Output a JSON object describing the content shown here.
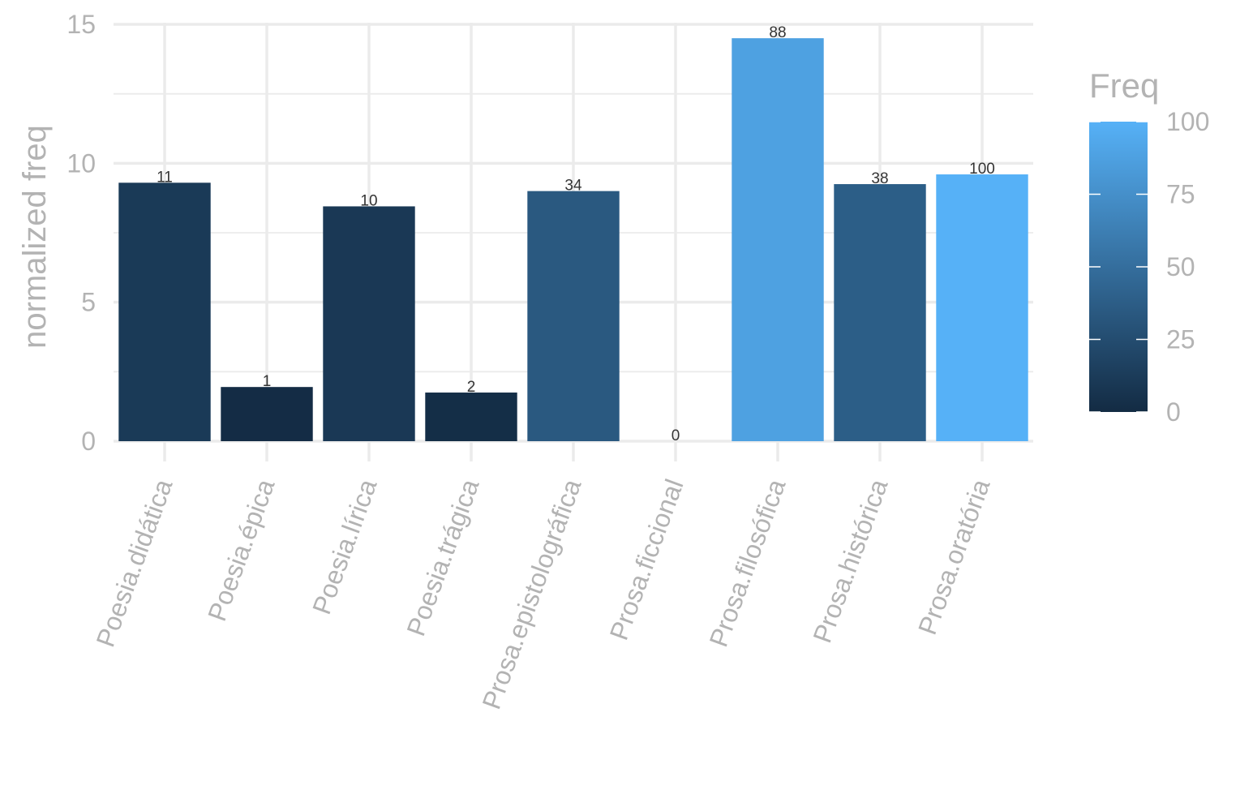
{
  "chart_data": {
    "type": "bar",
    "categories": [
      "Poesia.didática",
      "Poesia.épica",
      "Poesia.lírica",
      "Poesia.trágica",
      "Prosa.epistolográfica",
      "Prosa.ficcional",
      "Prosa.filosófica",
      "Prosa.histórica",
      "Prosa.oratória"
    ],
    "values": [
      9.3,
      1.95,
      8.45,
      1.75,
      9.0,
      0,
      14.5,
      9.25,
      9.6
    ],
    "freq": [
      11,
      1,
      10,
      2,
      34,
      0,
      88,
      38,
      100
    ],
    "data_labels": [
      "11",
      "1",
      "10",
      "2",
      "34",
      "0",
      "88",
      "38",
      "100"
    ],
    "title": "",
    "xlabel": "",
    "ylabel": "normalized freq",
    "ylim": [
      0,
      15
    ],
    "yticks": [
      0,
      5,
      10,
      15
    ],
    "grid": true,
    "legend": {
      "title": "Freq",
      "placement": "right",
      "ticks": [
        0,
        25,
        50,
        75,
        100
      ],
      "range": [
        0,
        100
      ],
      "low_color": "#132B43",
      "high_color": "#56B1F7"
    }
  }
}
